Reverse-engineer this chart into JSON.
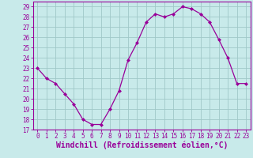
{
  "x": [
    0,
    1,
    2,
    3,
    4,
    5,
    6,
    7,
    8,
    9,
    10,
    11,
    12,
    13,
    14,
    15,
    16,
    17,
    18,
    19,
    20,
    21,
    22,
    23
  ],
  "y": [
    23,
    22,
    21.5,
    20.5,
    19.5,
    18,
    17.5,
    17.5,
    19,
    20.8,
    23.8,
    25.5,
    27.5,
    28.3,
    28,
    28.3,
    29,
    28.8,
    28.3,
    27.5,
    25.8,
    24,
    21.5,
    21.5
  ],
  "line_color": "#990099",
  "marker": "D",
  "marker_size": 2.0,
  "bg_color": "#c8eaea",
  "grid_color": "#a0c8c8",
  "xlabel": "Windchill (Refroidissement éolien,°C)",
  "xlabel_color": "#990099",
  "ylim_min": 17,
  "ylim_max": 29.5,
  "yticks": [
    17,
    18,
    19,
    20,
    21,
    22,
    23,
    24,
    25,
    26,
    27,
    28,
    29
  ],
  "xticks": [
    0,
    1,
    2,
    3,
    4,
    5,
    6,
    7,
    8,
    9,
    10,
    11,
    12,
    13,
    14,
    15,
    16,
    17,
    18,
    19,
    20,
    21,
    22,
    23
  ],
  "tick_color": "#990099",
  "tick_fontsize": 5.5,
  "xlabel_fontsize": 7.0,
  "border_color": "#990099",
  "linewidth": 0.9
}
